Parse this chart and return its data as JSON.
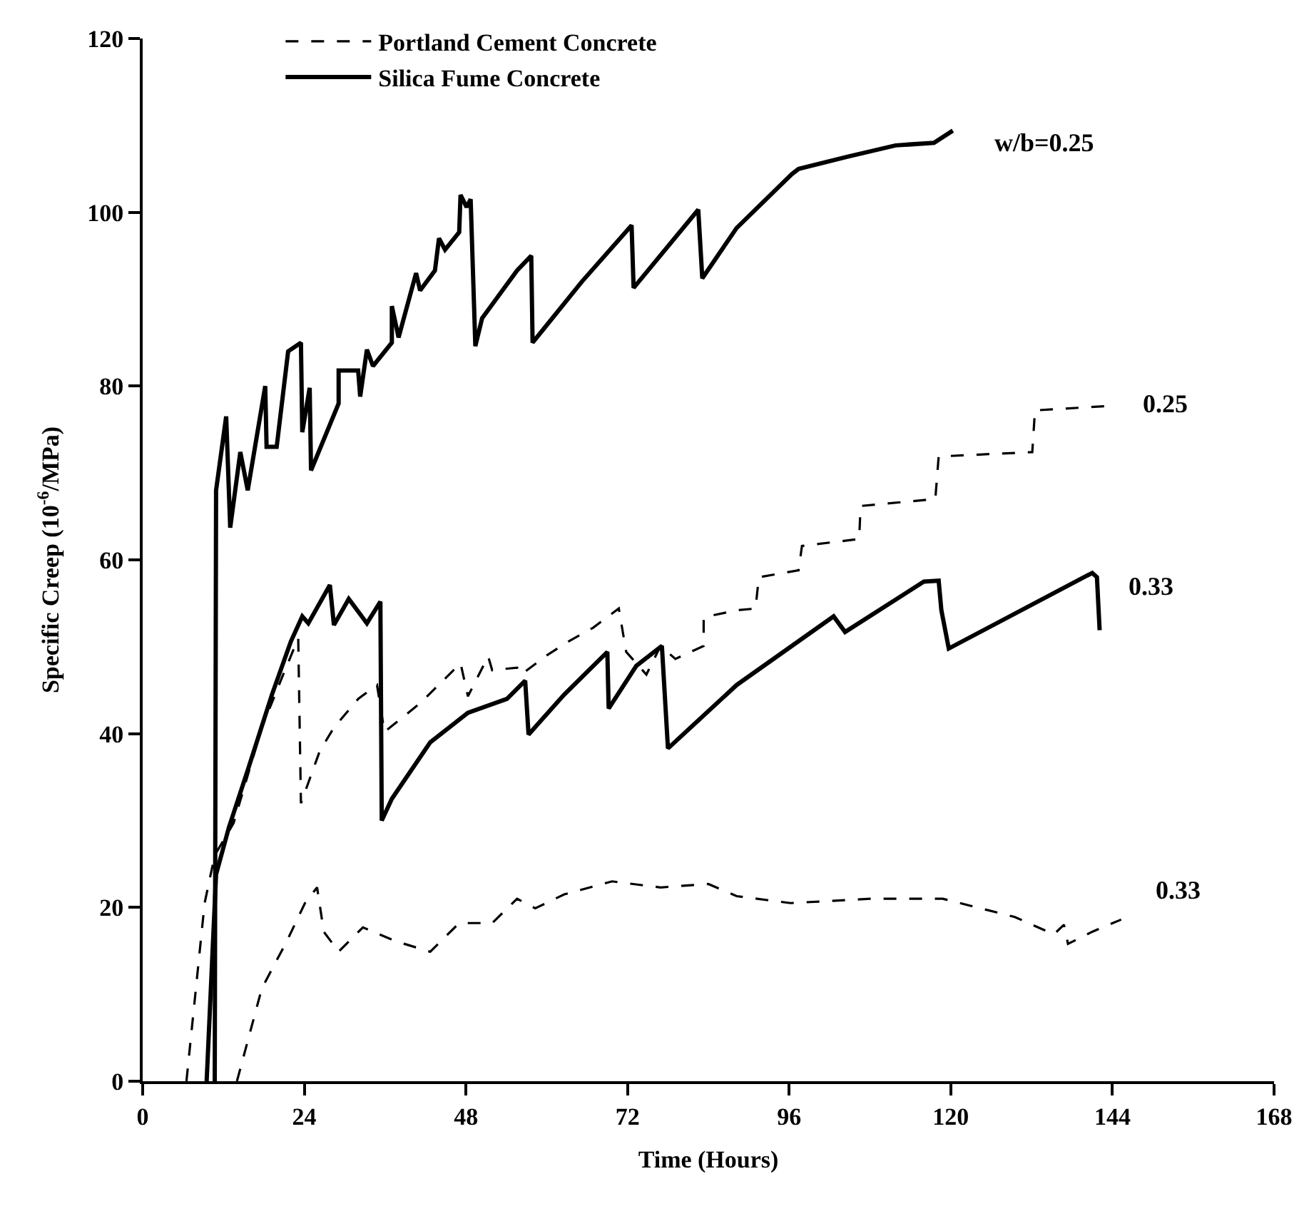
{
  "chart_data": {
    "type": "line",
    "xlabel": "Time (Hours)",
    "ylabel": "Specific Creep (10$^{-6}$/MPa)",
    "xlim": [
      0,
      168
    ],
    "xticks": [
      0,
      24,
      48,
      72,
      96,
      120,
      144,
      168
    ],
    "ylim": [
      0,
      120
    ],
    "yticks": [
      0,
      20,
      40,
      60,
      80,
      100,
      120
    ],
    "legend": "top left",
    "series": [
      {
        "name": "Portland Cement Concrete",
        "color": "#000000",
        "line_style": "dashed",
        "x": [
          6.5,
          9.2,
          10.7,
          13.5,
          17.7,
          20.5,
          23.1,
          23.5,
          26.3,
          28.4,
          32,
          34.8,
          35.9,
          41.2,
          47.2,
          48.3,
          51.3,
          51.9,
          55.6,
          56.2,
          59.8,
          63.2,
          66.9,
          70.7,
          71.8,
          74.8,
          76.9,
          79.1,
          83.3,
          83.3,
          88.2,
          91,
          91.5,
          97.4,
          97.9,
          106.4,
          106.6,
          117.7,
          118.2,
          132.1,
          132.5,
          143.2
        ],
        "values": [
          0,
          20.5,
          26,
          29.7,
          40.7,
          46.1,
          51,
          32,
          38,
          40.7,
          44,
          45.6,
          40.2,
          43.5,
          48.1,
          44.3,
          48.9,
          47.3,
          47.6,
          46.8,
          48.9,
          50.6,
          52.2,
          54.4,
          49.4,
          46.8,
          50.1,
          48.6,
          50.1,
          53.4,
          54.2,
          54.4,
          58,
          58.8,
          61.6,
          62.4,
          66.2,
          67,
          71.9,
          72.4,
          77.2,
          77.7
        ]
      },
      {
        "name": "Silica Fume Concrete",
        "color": "#000000",
        "line_style": "solid",
        "x": [
          10.7,
          10.9,
          12.4,
          13,
          14.5,
          15.6,
          18.2,
          18.4,
          19.9,
          21.6,
          23.5,
          23.7,
          24.8,
          25,
          29.1,
          29.1,
          32,
          32.3,
          33.3,
          34.2,
          37,
          37,
          38,
          40.6,
          41.2,
          43.4,
          44,
          44.9,
          47,
          47.2,
          48.1,
          48.7,
          49.4,
          50.4,
          55.6,
          57.7,
          57.9,
          65.2,
          72.6,
          72.9,
          82.5,
          83.1,
          88.2,
          96.4,
          97.4,
          104.7,
          111.8,
          117.5,
          120.3
        ],
        "values": [
          0,
          68,
          76.5,
          63.7,
          72.4,
          68,
          80,
          73,
          73,
          84,
          85,
          74.7,
          79.8,
          70.3,
          78,
          81.8,
          81.8,
          78.8,
          84.2,
          82.3,
          85,
          89.2,
          85.6,
          93,
          91,
          93.3,
          97,
          95.7,
          97.7,
          102,
          100.6,
          101.5,
          84.6,
          87.8,
          93.3,
          95,
          85,
          92,
          98.5,
          91.3,
          100.3,
          92.4,
          98.2,
          104.4,
          105,
          106.4,
          107.7,
          108,
          109.4
        ]
      },
      {
        "color": "#000000",
        "line_style": "solid",
        "x": [
          9.5,
          10.9,
          12.8,
          15.6,
          19.2,
          22,
          23.7,
          24.6,
          27.8,
          28.4,
          30.6,
          33.3,
          35.3,
          35.5,
          37,
          42.7,
          48.3,
          54.1,
          56.8,
          57.3,
          62.6,
          69,
          69.2,
          73.3,
          77.1,
          78,
          88.2,
          102.6,
          104.3,
          116,
          118.2,
          118.6,
          119.7,
          141,
          141.7,
          142.1
        ],
        "values": [
          0,
          23.8,
          29.2,
          35.8,
          44.5,
          50.6,
          53.5,
          52.7,
          57.1,
          52.5,
          55.5,
          52.7,
          55.2,
          30,
          32.5,
          39,
          42.4,
          44,
          46.1,
          39.9,
          44.5,
          49.4,
          42.9,
          47.8,
          50.1,
          38.3,
          45.6,
          53.5,
          51.7,
          57.5,
          57.6,
          54.2,
          49.8,
          58.5,
          58,
          51.9
        ]
      },
      {
        "color": "#000000",
        "line_style": "dashed",
        "x": [
          14,
          17.7,
          21.4,
          24.1,
          25.9,
          26.9,
          29.1,
          32.7,
          37.6,
          42.7,
          47,
          51.9,
          55.6,
          58.3,
          62.6,
          69.7,
          76.9,
          84,
          88.2,
          96.2,
          108.1,
          118.8,
          129.5,
          135.3,
          136.8,
          137.4,
          141,
          145.3
        ],
        "values": [
          0,
          10.7,
          16.1,
          20.5,
          22.3,
          17.2,
          14.9,
          17.7,
          16.1,
          14.9,
          18.2,
          18.2,
          21,
          19.9,
          21.5,
          23,
          22.3,
          22.7,
          21.3,
          20.5,
          21,
          21,
          18.9,
          16.9,
          18,
          15.8,
          17.2,
          18.6
        ]
      }
    ],
    "annotations": [
      "w/b=0.25",
      "0.25",
      "0.33",
      "0.33"
    ]
  }
}
